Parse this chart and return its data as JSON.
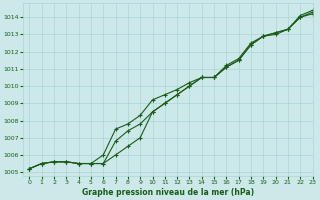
{
  "xlabel": "Graphe pression niveau de la mer (hPa)",
  "xlim": [
    -0.5,
    23
  ],
  "ylim": [
    1004.8,
    1014.8
  ],
  "yticks": [
    1005,
    1006,
    1007,
    1008,
    1009,
    1010,
    1011,
    1012,
    1013,
    1014
  ],
  "xticks": [
    0,
    1,
    2,
    3,
    4,
    5,
    6,
    7,
    8,
    9,
    10,
    11,
    12,
    13,
    14,
    15,
    16,
    17,
    18,
    19,
    20,
    21,
    22,
    23
  ],
  "background_color": "#cce8e8",
  "grid_color": "#aad4d4",
  "line_color": "#1a5c1a",
  "line1_y": [
    1005.2,
    1005.5,
    1005.6,
    1005.6,
    1005.5,
    1005.5,
    1005.5,
    1006.0,
    1006.5,
    1007.0,
    1008.5,
    1009.0,
    1009.5,
    1010.0,
    1010.5,
    1010.5,
    1011.1,
    1011.5,
    1012.4,
    1012.9,
    1013.1,
    1013.3,
    1014.1,
    1014.4
  ],
  "line2_y": [
    1005.2,
    1005.5,
    1005.6,
    1005.6,
    1005.5,
    1005.5,
    1005.5,
    1006.8,
    1007.4,
    1007.8,
    1008.5,
    1009.0,
    1009.5,
    1010.0,
    1010.5,
    1010.5,
    1011.1,
    1011.5,
    1012.4,
    1012.9,
    1013.1,
    1013.3,
    1014.0,
    1014.3
  ],
  "line3_y": [
    1005.2,
    1005.5,
    1005.6,
    1005.6,
    1005.5,
    1005.5,
    1006.0,
    1007.5,
    1007.8,
    1008.3,
    1009.2,
    1009.5,
    1009.8,
    1010.2,
    1010.5,
    1010.5,
    1011.2,
    1011.6,
    1012.5,
    1012.9,
    1013.0,
    1013.3,
    1014.0,
    1014.2
  ]
}
